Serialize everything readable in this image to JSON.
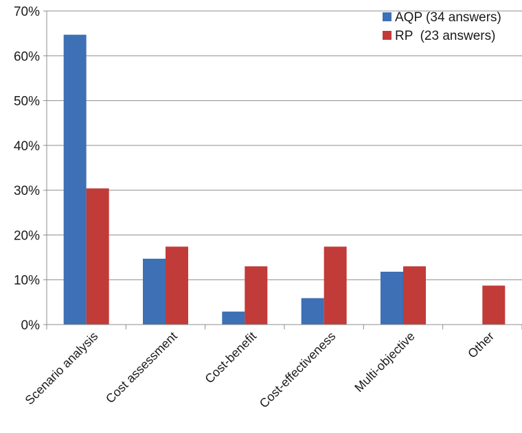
{
  "chart_data": {
    "type": "bar",
    "categories": [
      "Scenario analysis",
      "Cost assessment",
      "Cost-benefit",
      "Cost-effectiveness",
      "Multi-objective",
      "Other"
    ],
    "series": [
      {
        "name": "AQP (34 answers)",
        "color": "#3d70b5",
        "values": [
          64.7,
          14.7,
          2.9,
          5.9,
          11.8,
          0
        ]
      },
      {
        "name": "RP  (23 answers)",
        "color": "#c13b38",
        "values": [
          30.4,
          17.4,
          13.0,
          17.4,
          13.0,
          8.7
        ]
      }
    ],
    "yticks": [
      "0%",
      "10%",
      "20%",
      "30%",
      "40%",
      "50%",
      "60%",
      "70%"
    ],
    "ylim": [
      0,
      70
    ],
    "ystep": 10,
    "grid": true,
    "legend_position": "top-right",
    "title": "",
    "xlabel": "",
    "ylabel": ""
  }
}
